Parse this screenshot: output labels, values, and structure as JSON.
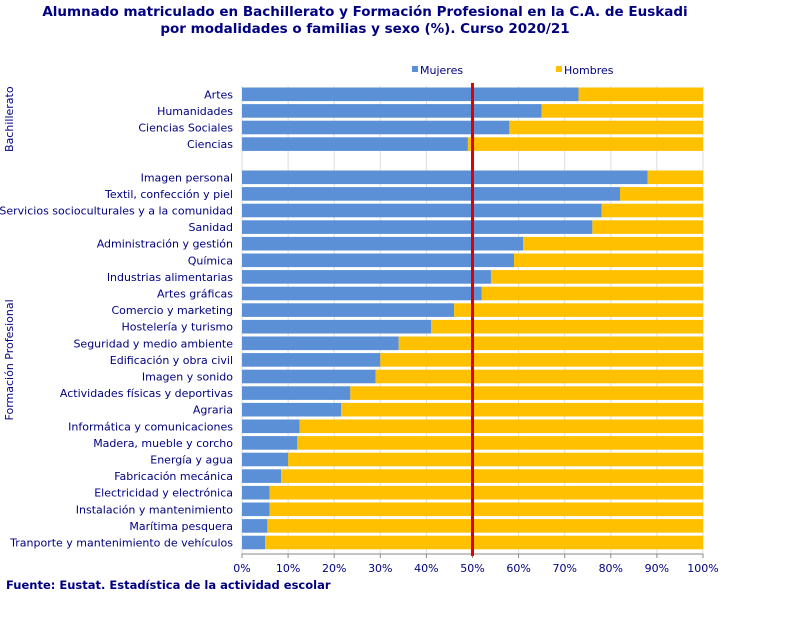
{
  "title_line1": "Alumnado matriculado en Bachillerato y Formación Profesional en la C.A. de Euskadi",
  "title_line2": "por modalidades o familias y sexo (%). Curso 2020/21",
  "source": "Fuente: Eustat. Estadística de la actividad escolar",
  "colors": {
    "mujeres": "#5b8fd6",
    "hombres": "#ffc000",
    "reference": "#e00000",
    "text": "#000080"
  },
  "chart_data": {
    "type": "bar",
    "orientation": "horizontal",
    "stacked": true,
    "percent": true,
    "title": "Alumnado matriculado en Bachillerato y Formación Profesional en la C.A. de Euskadi por modalidades o familias y sexo (%). Curso 2020/21",
    "legend": [
      "Mujeres",
      "Hombres"
    ],
    "legend_position": "top",
    "xlim": [
      0,
      100
    ],
    "x_ticks": [
      "0%",
      "10%",
      "20%",
      "30%",
      "40%",
      "50%",
      "60%",
      "70%",
      "80%",
      "90%",
      "100%"
    ],
    "reference_line": 50,
    "groups": [
      {
        "name": "Bachillerato",
        "categories": [
          "Artes",
          "Humanidades",
          "Ciencias Sociales",
          "Ciencias"
        ],
        "series": [
          {
            "name": "Mujeres",
            "values": [
              73,
              65,
              58,
              49
            ]
          },
          {
            "name": "Hombres",
            "values": [
              27,
              35,
              42,
              51
            ]
          }
        ]
      },
      {
        "name": "Formación Profesional",
        "categories": [
          "Imagen personal",
          "Textil, confección y piel",
          "Servicios socioculturales y a la comunidad",
          "Sanidad",
          "Administración y gestión",
          "Química",
          "Industrias alimentarias",
          "Artes gráficas",
          "Comercio y marketing",
          "Hostelería y turismo",
          "Seguridad y medio ambiente",
          "Edificación y obra civil",
          "Imagen y sonido",
          "Actividades físicas y deportivas",
          "Agraria",
          "Informática y comunicaciones",
          "Madera, mueble y corcho",
          "Energía y agua",
          "Fabricación mecánica",
          "Electricidad y electrónica",
          "Instalación y mantenimiento",
          "Marítima pesquera",
          "Tranporte y mantenimiento de vehículos"
        ],
        "series": [
          {
            "name": "Mujeres",
            "values": [
              88,
              82,
              78,
              76,
              61,
              59,
              54,
              52,
              46,
              41,
              34,
              30,
              29,
              23.5,
              21.5,
              12.5,
              12,
              10,
              8.5,
              6,
              6,
              5.5,
              5
            ]
          },
          {
            "name": "Hombres",
            "values": [
              12,
              18,
              22,
              24,
              39,
              41,
              46,
              48,
              54,
              59,
              66,
              70,
              71,
              76.5,
              78.5,
              87.5,
              88,
              90,
              91.5,
              94,
              94,
              94.5,
              95
            ]
          }
        ]
      }
    ]
  }
}
